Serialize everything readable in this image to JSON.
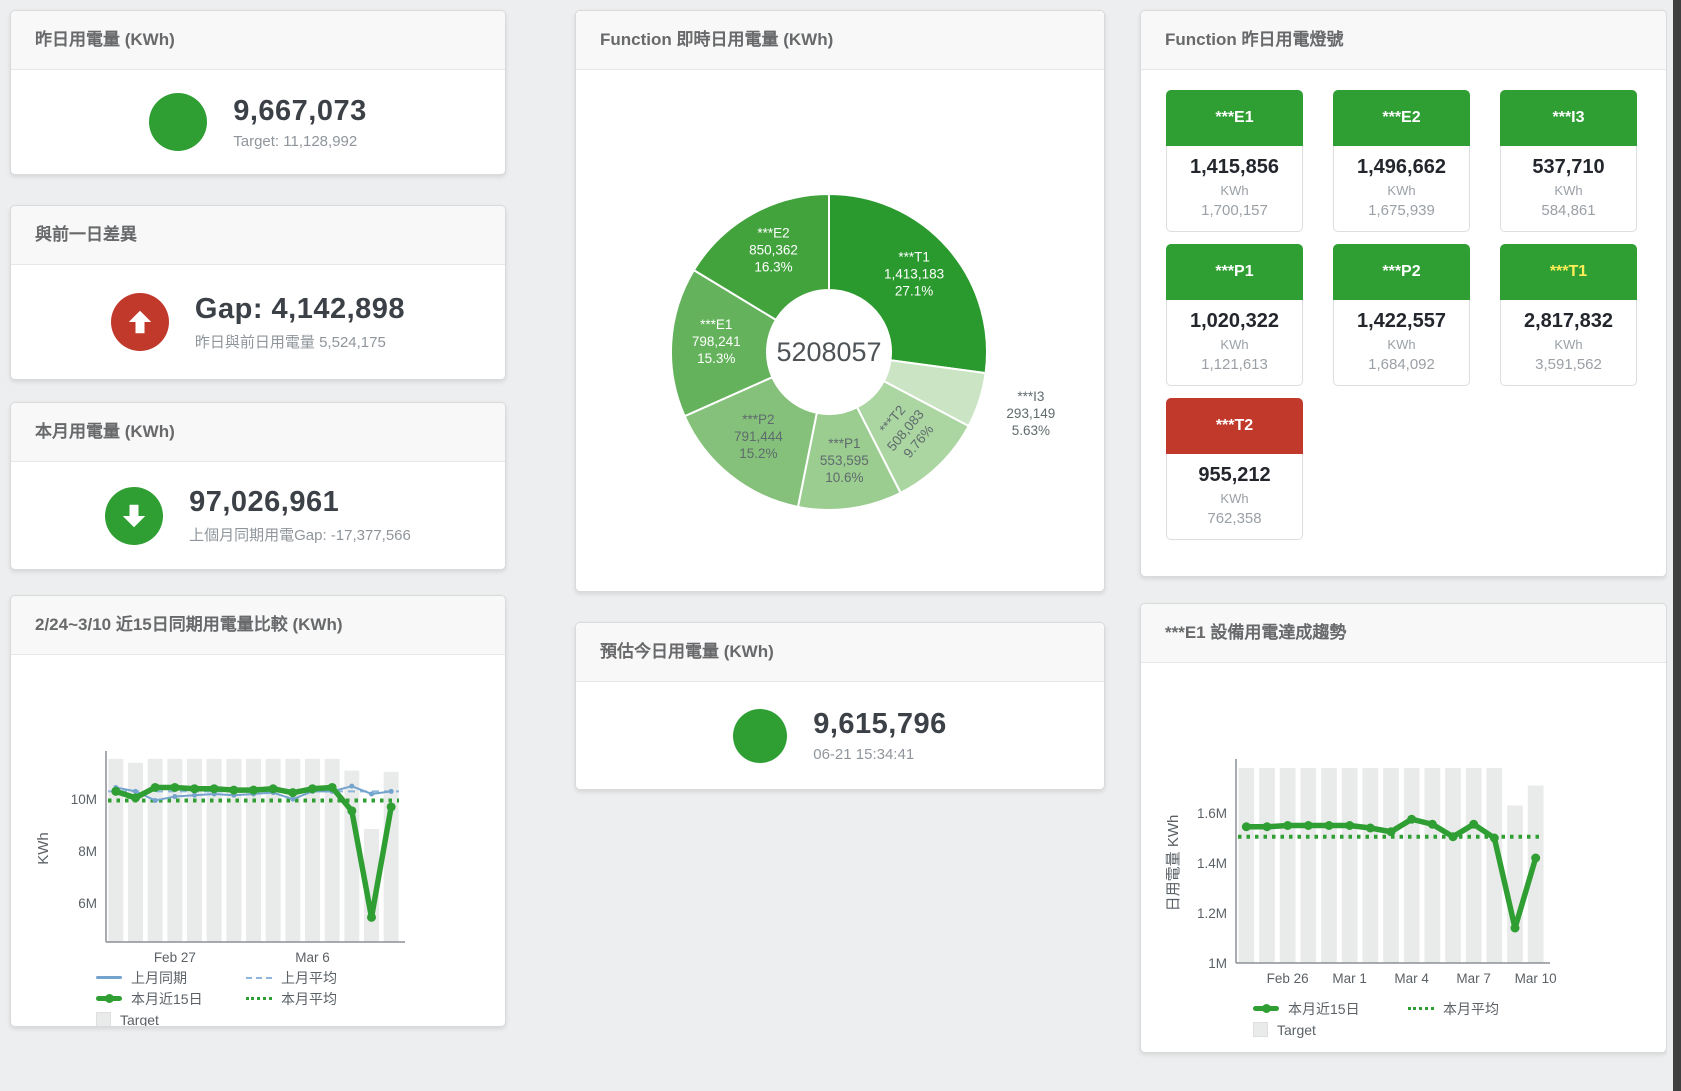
{
  "page": {
    "bg_color": "#edeeef",
    "scrollbar_color": "#3f3f3f"
  },
  "kpi_cards": [
    {
      "title": "昨日用電量 (KWh)",
      "indicator": "circle",
      "indicator_color": "#2f9e33",
      "value": "9,667,073",
      "subtitle": "Target: 11,128,992"
    },
    {
      "title": "與前一日差異",
      "indicator": "arrow-up",
      "indicator_color": "#c0392b",
      "value": "Gap: 4,142,898",
      "subtitle": "昨日與前日用電量 5,524,175"
    },
    {
      "title": "本月用電量 (KWh)",
      "indicator": "arrow-down",
      "indicator_color": "#2f9e33",
      "value": "97,026,961",
      "subtitle": "上個月同期用電Gap: -17,377,566"
    },
    {
      "title": "預估今日用電量 (KWh)",
      "indicator": "circle",
      "indicator_color": "#2f9e33",
      "value": "9,615,796",
      "subtitle": "06-21 15:34:41"
    }
  ],
  "lights_panel": {
    "title": "Function 昨日用電燈號",
    "unit": "KWh",
    "tiles": [
      {
        "label": "***E1",
        "value": "1,415,856",
        "target": "1,700,157",
        "status_color": "#2f9e33",
        "label_color": "#ffffff"
      },
      {
        "label": "***E2",
        "value": "1,496,662",
        "target": "1,675,939",
        "status_color": "#2f9e33",
        "label_color": "#ffffff"
      },
      {
        "label": "***I3",
        "value": "537,710",
        "target": "584,861",
        "status_color": "#2f9e33",
        "label_color": "#ffffff"
      },
      {
        "label": "***P1",
        "value": "1,020,322",
        "target": "1,121,613",
        "status_color": "#2f9e33",
        "label_color": "#ffffff"
      },
      {
        "label": "***P2",
        "value": "1,422,557",
        "target": "1,684,092",
        "status_color": "#2f9e33",
        "label_color": "#ffffff"
      },
      {
        "label": "***T1",
        "value": "2,817,832",
        "target": "3,591,562",
        "status_color": "#2f9e33",
        "label_color": "#ffee58"
      },
      {
        "label": "***T2",
        "value": "955,212",
        "target": "762,358",
        "status_color": "#c0392b",
        "label_color": "#ffffff"
      }
    ]
  },
  "chart_data": [
    {
      "id": "realtime_donut",
      "type": "pie",
      "title": "Function 即時日用電量 (KWh)",
      "center_total": "5208057",
      "slices": [
        {
          "name": "***T1",
          "value": 1413183,
          "display": "1,413,183",
          "pct": "27.1%",
          "color": "#2b9a2e",
          "label_color": "#ffffff",
          "label_pos": "inside"
        },
        {
          "name": "***I3",
          "value": 293149,
          "display": "293,149",
          "pct": "5.63%",
          "color": "#cbe5c4",
          "label_color": "#5f6b6d",
          "label_pos": "outside"
        },
        {
          "name": "***T2",
          "value": 508083,
          "display": "508,083",
          "pct": "9.76%",
          "color": "#abd6a2",
          "label_color": "#5f6b6d",
          "label_pos": "inside",
          "label_rotate": -50
        },
        {
          "name": "***P1",
          "value": 553595,
          "display": "553,595",
          "pct": "10.6%",
          "color": "#9bcd90",
          "label_color": "#5f6b6d",
          "label_pos": "inside"
        },
        {
          "name": "***P2",
          "value": 791444,
          "display": "791,444",
          "pct": "15.2%",
          "color": "#85c17a",
          "label_color": "#5f6b6d",
          "label_pos": "inside"
        },
        {
          "name": "***E1",
          "value": 798241,
          "display": "798,241",
          "pct": "15.3%",
          "color": "#64b25b",
          "label_color": "#ffffff",
          "label_pos": "inside"
        },
        {
          "name": "***E2",
          "value": 850362,
          "display": "850,362",
          "pct": "16.3%",
          "color": "#42a33d",
          "label_color": "#ffffff",
          "label_pos": "inside"
        }
      ]
    },
    {
      "id": "compare15",
      "type": "line",
      "title": "2/24~3/10 近15日同期用電量比較 (KWh)",
      "ylabel": "KWh",
      "ylim": [
        4.5,
        11.7
      ],
      "yticks": [
        {
          "v": 6,
          "label": "6M"
        },
        {
          "v": 8,
          "label": "8M"
        },
        {
          "v": 10,
          "label": "10M"
        }
      ],
      "xticks": [
        {
          "i": 3,
          "label": "Feb 27"
        },
        {
          "i": 10,
          "label": "Mar 6"
        }
      ],
      "x_period": "2/24 - 3/10 (15 days)",
      "series": [
        {
          "name": "Target",
          "kind": "bar",
          "color": "#e9eaea",
          "values": [
            11.55,
            11.4,
            11.55,
            11.55,
            11.55,
            11.55,
            11.55,
            11.55,
            11.55,
            11.55,
            11.55,
            11.55,
            11.1,
            8.85,
            11.05
          ]
        },
        {
          "name": "上月同期",
          "kind": "line",
          "dash": "solid",
          "width": 2,
          "color": "#74a3cd",
          "marker": 2.5,
          "values": [
            10.45,
            10.3,
            9.95,
            10.1,
            10.15,
            10.2,
            10.15,
            10.2,
            10.25,
            10.0,
            10.3,
            10.3,
            10.5,
            10.2,
            10.3
          ]
        },
        {
          "name": "上月平均",
          "kind": "line",
          "dash": "dashed",
          "width": 2,
          "color": "#8db6da",
          "constant": 10.3
        },
        {
          "name": "本月近15日",
          "kind": "line",
          "dash": "solid",
          "width": 5.5,
          "color": "#2f9e33",
          "marker": 4.5,
          "values": [
            10.3,
            10.05,
            10.45,
            10.45,
            10.4,
            10.4,
            10.35,
            10.35,
            10.4,
            10.25,
            10.4,
            10.45,
            9.55,
            5.45,
            9.7
          ]
        },
        {
          "name": "本月平均",
          "kind": "line",
          "dash": "dotted",
          "width": 4,
          "color": "#2f9e33",
          "constant": 9.95
        }
      ],
      "legend": [
        {
          "label": "上月同期",
          "glyph": "line",
          "color": "#74a3cd"
        },
        {
          "label": "上月平均",
          "glyph": "dashed",
          "color": "#8db6da"
        },
        {
          "label": "本月近15日",
          "glyph": "thick-line",
          "color": "#2f9e33"
        },
        {
          "label": "本月平均",
          "glyph": "dotted",
          "color": "#2f9e33"
        },
        {
          "label": "Target",
          "glyph": "square",
          "color": "#e9eaea"
        }
      ]
    },
    {
      "id": "e1_trend",
      "type": "line",
      "title": "***E1 設備用電達成趨勢",
      "ylabel": "日用電量 KWh",
      "ylim": [
        1.0,
        1.8
      ],
      "yticks": [
        {
          "v": 1,
          "label": "1M"
        },
        {
          "v": 1.2,
          "label": "1.2M"
        },
        {
          "v": 1.4,
          "label": "1.4M"
        },
        {
          "v": 1.6,
          "label": "1.6M"
        }
      ],
      "xticks": [
        {
          "i": 2,
          "label": "Feb 26"
        },
        {
          "i": 5,
          "label": "Mar 1"
        },
        {
          "i": 8,
          "label": "Mar 4"
        },
        {
          "i": 11,
          "label": "Mar 7"
        },
        {
          "i": 14,
          "label": "Mar 10"
        }
      ],
      "x_period": "2/24 - 3/10 (15 days)",
      "series": [
        {
          "name": "Target",
          "kind": "bar",
          "color": "#e9eaea",
          "values": [
            1.78,
            1.78,
            1.78,
            1.78,
            1.78,
            1.78,
            1.78,
            1.78,
            1.78,
            1.78,
            1.78,
            1.78,
            1.78,
            1.63,
            1.71
          ]
        },
        {
          "name": "本月近15日",
          "kind": "line",
          "dash": "solid",
          "width": 5.5,
          "color": "#2f9e33",
          "marker": 4.5,
          "values": [
            1.545,
            1.545,
            1.55,
            1.55,
            1.55,
            1.55,
            1.54,
            1.525,
            1.575,
            1.555,
            1.505,
            1.555,
            1.5,
            1.14,
            1.42
          ]
        },
        {
          "name": "本月平均",
          "kind": "line",
          "dash": "dotted",
          "width": 4,
          "color": "#2f9e33",
          "constant": 1.505
        }
      ],
      "legend": [
        {
          "label": "本月近15日",
          "glyph": "thick-line",
          "color": "#2f9e33"
        },
        {
          "label": "本月平均",
          "glyph": "dotted",
          "color": "#2f9e33"
        },
        {
          "label": "Target",
          "glyph": "square",
          "color": "#e9eaea"
        }
      ]
    }
  ]
}
